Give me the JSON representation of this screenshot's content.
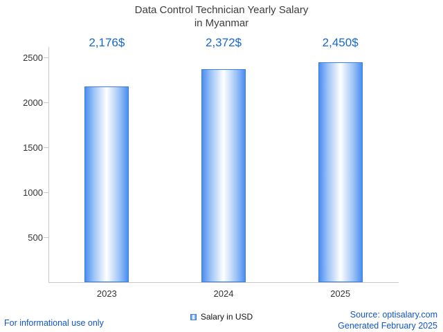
{
  "title": {
    "line1": "Data Control Technician Yearly Salary",
    "line2": "in Myanmar"
  },
  "chart_data": {
    "type": "bar",
    "title": "Data Control Technician Yearly Salary in Myanmar",
    "categories": [
      "2023",
      "2024",
      "2025"
    ],
    "values": [
      2176,
      2372,
      2450
    ],
    "value_labels": [
      "2,176$",
      "2,372$",
      "2,450$"
    ],
    "series": [
      {
        "name": "Salary in USD",
        "values": [
          2176,
          2372,
          2450
        ]
      }
    ],
    "xlabel": "",
    "ylabel": "",
    "ylim": [
      0,
      2500
    ],
    "yticks": [
      500,
      1000,
      1500,
      2000,
      2500
    ],
    "grid": false,
    "legend_position": "bottom",
    "bar_color": "#4a8ef0"
  },
  "legend": {
    "label": "Salary in USD"
  },
  "footer": {
    "left": "For informational use only",
    "source": "Source: optisalary.com",
    "generated": "Generated February 2025"
  },
  "colors": {
    "value_label_blue": "#1766d1",
    "link_blue": "#1155cc",
    "axis_gray": "#c9c9c9",
    "title_gray": "#3c3c3c",
    "bar_blue": "#4a8ef0"
  }
}
